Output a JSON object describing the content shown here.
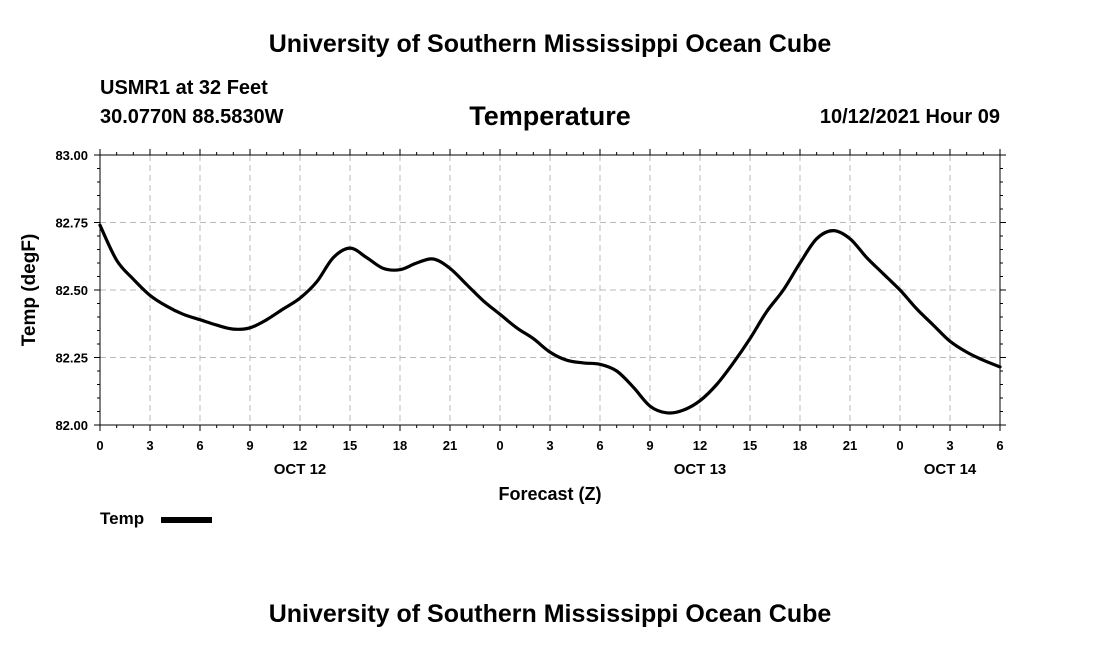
{
  "header": {
    "title": "University of Southern Mississippi Ocean Cube",
    "station": "USMR1 at 32 Feet",
    "coords": "30.0770N  88.5830W",
    "parameter": "Temperature",
    "issued": "10/12/2021 Hour 09"
  },
  "footer": {
    "title": "University of Southern Mississippi Ocean Cube"
  },
  "legend": {
    "label": "Temp"
  },
  "chart_data": {
    "type": "line",
    "title": "Temperature",
    "xlabel": "Forecast (Z)",
    "ylabel": "Temp (degF)",
    "ylim": [
      82.0,
      83.0
    ],
    "xlim": [
      0,
      54
    ],
    "yticks": [
      82.0,
      82.25,
      82.5,
      82.75,
      83.0
    ],
    "ytick_labels": [
      "82.00",
      "82.25",
      "82.50",
      "82.75",
      "83.00"
    ],
    "xtick_labels": [
      "0",
      "3",
      "6",
      "9",
      "12",
      "15",
      "18",
      "21",
      "0",
      "3",
      "6",
      "9",
      "12",
      "15",
      "18",
      "21",
      "0",
      "3",
      "6"
    ],
    "day_labels": [
      {
        "label": "OCT 12",
        "hour": 12
      },
      {
        "label": "OCT 13",
        "hour": 36
      },
      {
        "label": "OCT 14",
        "hour": 51
      }
    ],
    "grid": true,
    "series": [
      {
        "name": "Temp",
        "color": "#000000",
        "x": [
          0,
          1,
          2,
          3,
          4,
          5,
          6,
          7,
          8,
          9,
          10,
          11,
          12,
          13,
          14,
          15,
          16,
          17,
          18,
          19,
          20,
          21,
          22,
          23,
          24,
          25,
          26,
          27,
          28,
          29,
          30,
          31,
          32,
          33,
          34,
          35,
          36,
          37,
          38,
          39,
          40,
          41,
          42,
          43,
          44,
          45,
          46,
          47,
          48,
          49,
          50,
          51,
          52,
          53,
          54
        ],
        "values": [
          82.74,
          82.61,
          82.54,
          82.48,
          82.44,
          82.41,
          82.39,
          82.37,
          82.355,
          82.36,
          82.39,
          82.43,
          82.47,
          82.53,
          82.62,
          82.655,
          82.62,
          82.58,
          82.575,
          82.6,
          82.615,
          82.58,
          82.52,
          82.46,
          82.41,
          82.36,
          82.32,
          82.27,
          82.24,
          82.23,
          82.225,
          82.2,
          82.14,
          82.07,
          82.045,
          82.055,
          82.09,
          82.15,
          82.23,
          82.32,
          82.42,
          82.5,
          82.6,
          82.69,
          82.72,
          82.69,
          82.62,
          82.56,
          82.5,
          82.43,
          82.37,
          82.31,
          82.27,
          82.24,
          82.215
        ]
      }
    ]
  }
}
